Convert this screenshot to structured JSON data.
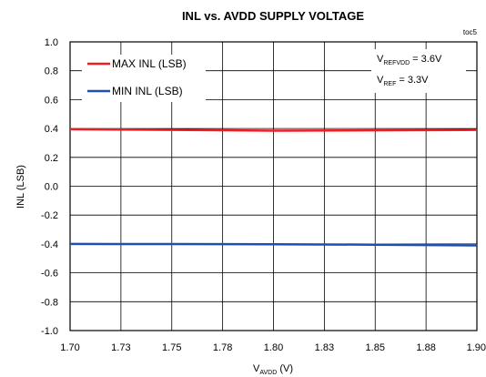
{
  "chart_data": {
    "type": "line",
    "title": "INL vs. AVDD SUPPLY VOLTAGE",
    "tag": "toc5",
    "xlabel": {
      "base": "V",
      "sub": "AVDD",
      "suffix": " (V)"
    },
    "ylabel": "INL (LSB)",
    "xlim": [
      1.7,
      1.9
    ],
    "ylim": [
      -1.0,
      1.0
    ],
    "x_ticks": [
      1.7,
      1.725,
      1.75,
      1.775,
      1.8,
      1.825,
      1.85,
      1.875,
      1.9
    ],
    "x_tick_labels": [
      "1.70",
      "1.73",
      "1.75",
      "1.78",
      "1.80",
      "1.83",
      "1.85",
      "1.88",
      "1.90"
    ],
    "y_ticks": [
      1.0,
      0.8,
      0.6,
      0.4,
      0.2,
      0.0,
      -0.2,
      -0.4,
      -0.6,
      -0.8,
      -1.0
    ],
    "y_tick_labels": [
      "1.0",
      "0.8",
      "0.6",
      "0.4",
      "0.2",
      "0.0",
      "-0.2",
      "-0.4",
      "-0.6",
      "-0.8",
      "-1.0"
    ],
    "grid": true,
    "legend_position": "top-left",
    "series": [
      {
        "name": "MAX INL (LSB)",
        "color": "#ee1c24",
        "x": [
          1.7,
          1.75,
          1.8,
          1.85,
          1.9
        ],
        "y": [
          0.395,
          0.39,
          0.385,
          0.387,
          0.39
        ]
      },
      {
        "name": "MIN INL (LSB)",
        "color": "#1f4fb0",
        "x": [
          1.7,
          1.75,
          1.8,
          1.85,
          1.9
        ],
        "y": [
          -0.4,
          -0.401,
          -0.402,
          -0.405,
          -0.41
        ]
      }
    ],
    "annotations": [
      {
        "base": "V",
        "sub": "REFVDD",
        "suffix": " = 3.6V"
      },
      {
        "base": "V",
        "sub": "REF",
        "suffix": " = 3.3V"
      }
    ]
  }
}
